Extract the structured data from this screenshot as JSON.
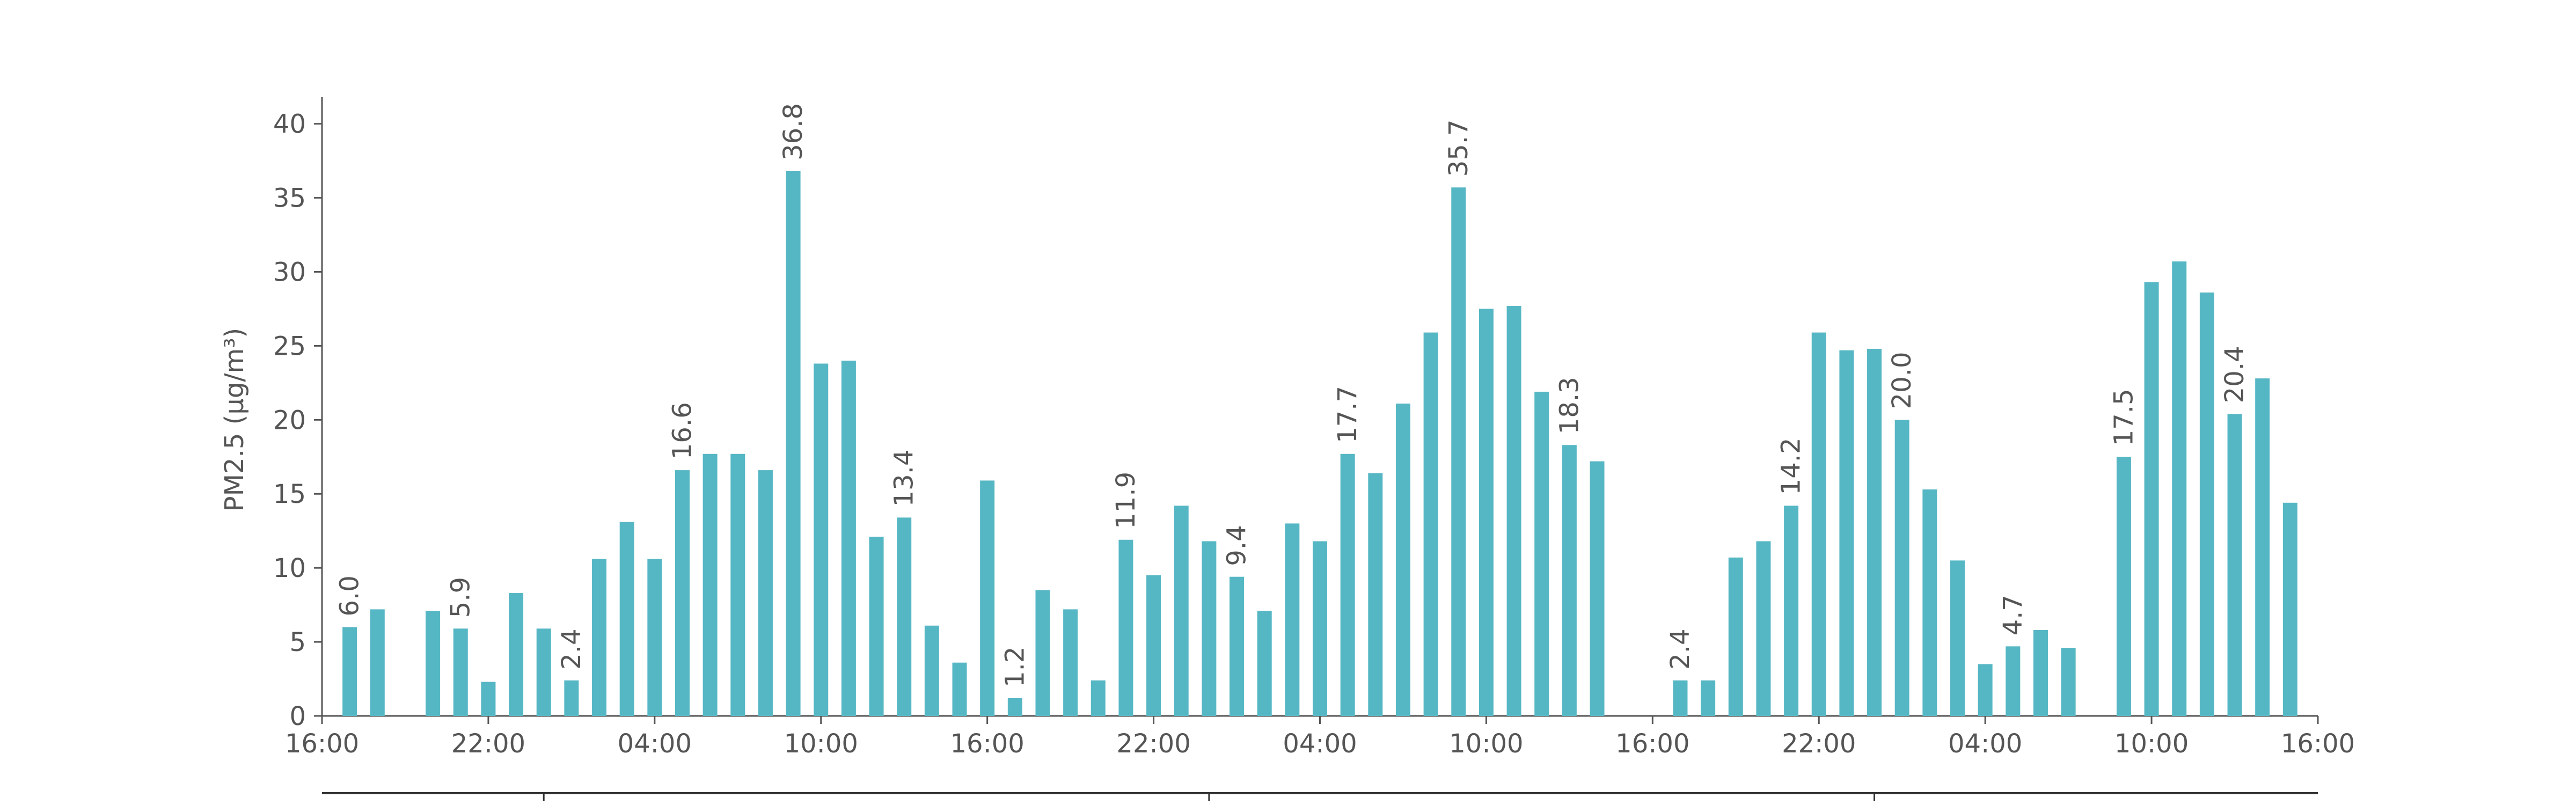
{
  "chart_data": {
    "type": "bar",
    "y_label": "PM2.5 (μg/m³)",
    "x": [
      1,
      2,
      4,
      5,
      6,
      7,
      8,
      9,
      10,
      11,
      12,
      13,
      14,
      15,
      16,
      17,
      18,
      19,
      20,
      21,
      22,
      23,
      24,
      25,
      26,
      27,
      28,
      29,
      30,
      31,
      32,
      33,
      34,
      35,
      36,
      37,
      38,
      39,
      40,
      41,
      42,
      43,
      44,
      45,
      46,
      49,
      50,
      51,
      52,
      53,
      54,
      55,
      56,
      57,
      58,
      59,
      60,
      61,
      62,
      63,
      65,
      66,
      67,
      68,
      69,
      70,
      71
    ],
    "series": [
      {
        "name": "PM2.5",
        "color": "#56b7c4",
        "values": [
          6.0,
          7.2,
          7.1,
          5.9,
          2.3,
          8.3,
          5.9,
          2.4,
          10.6,
          13.1,
          10.6,
          16.6,
          17.7,
          17.7,
          16.6,
          36.8,
          23.8,
          24.0,
          12.1,
          13.4,
          6.1,
          3.6,
          15.9,
          1.2,
          8.5,
          7.2,
          2.4,
          11.9,
          9.5,
          14.2,
          11.8,
          9.4,
          7.1,
          13.0,
          11.8,
          17.7,
          16.4,
          21.1,
          25.9,
          35.7,
          27.5,
          27.7,
          21.9,
          18.3,
          17.2,
          2.4,
          2.4,
          10.7,
          11.8,
          14.2,
          25.9,
          24.7,
          24.8,
          20.0,
          15.3,
          10.5,
          3.5,
          4.7,
          5.8,
          4.6,
          17.5,
          29.3,
          30.7,
          28.6,
          20.4,
          22.8,
          14.4
        ],
        "value_labels": [
          "6.0",
          null,
          null,
          "5.9",
          null,
          null,
          null,
          "2.4",
          null,
          null,
          null,
          "16.6",
          null,
          null,
          null,
          "36.8",
          null,
          null,
          null,
          "13.4",
          null,
          null,
          null,
          "1.2",
          null,
          null,
          null,
          "11.9",
          null,
          null,
          null,
          "9.4",
          null,
          null,
          null,
          "17.7",
          null,
          null,
          null,
          "35.7",
          null,
          null,
          null,
          "18.3",
          null,
          "2.4",
          null,
          null,
          null,
          "14.2",
          null,
          null,
          null,
          "20.0",
          null,
          null,
          null,
          "4.7",
          null,
          null,
          "17.5",
          null,
          null,
          null,
          "20.4",
          null,
          null
        ]
      }
    ],
    "xlim": [
      0,
      72
    ],
    "xticks": [
      {
        "value": 0,
        "label": "16:00"
      },
      {
        "value": 6,
        "label": "22:00"
      },
      {
        "value": 12,
        "label": "04:00"
      },
      {
        "value": 18,
        "label": "10:00"
      },
      {
        "value": 24,
        "label": "16:00"
      },
      {
        "value": 30,
        "label": "22:00"
      },
      {
        "value": 36,
        "label": "04:00"
      },
      {
        "value": 42,
        "label": "10:00"
      },
      {
        "value": 48,
        "label": "16:00"
      },
      {
        "value": 54,
        "label": "22:00"
      },
      {
        "value": 60,
        "label": "04:00"
      },
      {
        "value": 66,
        "label": "10:00"
      },
      {
        "value": 72,
        "label": "16:00"
      }
    ],
    "day_ticks": [
      8,
      32,
      56
    ],
    "ylim": [
      0,
      41.8
    ],
    "yticks": [
      0,
      5,
      10,
      15,
      20,
      25,
      30,
      35,
      40
    ]
  }
}
